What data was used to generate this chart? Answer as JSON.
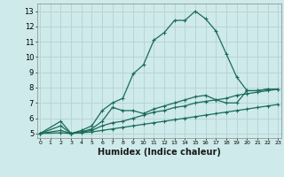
{
  "background_color": "#ceeaea",
  "grid_color": "#b8d4d4",
  "line_color": "#1a6b5a",
  "marker": "+",
  "markersize": 3,
  "linewidth": 0.9,
  "xlabel": "Humidex (Indice chaleur)",
  "xlabel_fontsize": 7,
  "ytick_fontsize": 6,
  "xtick_fontsize": 4.5,
  "yticks": [
    5,
    6,
    7,
    8,
    9,
    10,
    11,
    12,
    13
  ],
  "xticks": [
    0,
    1,
    2,
    3,
    4,
    5,
    6,
    7,
    8,
    9,
    10,
    11,
    12,
    13,
    14,
    15,
    16,
    17,
    18,
    19,
    20,
    21,
    22,
    23
  ],
  "xlim": [
    -0.3,
    23.3
  ],
  "ylim": [
    4.7,
    13.5
  ],
  "series": [
    {
      "x": [
        0,
        2,
        3,
        4,
        5,
        6,
        7,
        8,
        9,
        10,
        11,
        12,
        13,
        14,
        15,
        16,
        17,
        18,
        19,
        20,
        21,
        22
      ],
      "y": [
        5.0,
        5.8,
        5.0,
        5.2,
        5.5,
        6.5,
        7.0,
        7.3,
        8.9,
        9.5,
        11.1,
        11.6,
        12.4,
        12.4,
        13.0,
        12.5,
        11.7,
        10.2,
        8.7,
        7.8,
        7.8,
        7.9
      ]
    },
    {
      "x": [
        0,
        2,
        3,
        4,
        5,
        6,
        7,
        8,
        9,
        10,
        11,
        12,
        13,
        14,
        15,
        16,
        17,
        18,
        19,
        20,
        21,
        22,
        23
      ],
      "y": [
        5.0,
        5.5,
        5.0,
        5.1,
        5.3,
        5.8,
        6.7,
        6.5,
        6.5,
        6.3,
        6.6,
        6.8,
        7.0,
        7.2,
        7.4,
        7.5,
        7.2,
        7.0,
        7.0,
        7.8,
        7.8,
        7.9,
        7.9
      ]
    },
    {
      "x": [
        0,
        2,
        3,
        4,
        5,
        6,
        7,
        8,
        9,
        10,
        11,
        12,
        13,
        14,
        15,
        16,
        17,
        18,
        19,
        20,
        21,
        22,
        23
      ],
      "y": [
        5.0,
        5.2,
        5.0,
        5.1,
        5.2,
        5.5,
        5.7,
        5.8,
        6.0,
        6.2,
        6.4,
        6.5,
        6.7,
        6.8,
        7.0,
        7.1,
        7.2,
        7.3,
        7.5,
        7.6,
        7.7,
        7.8,
        7.9
      ]
    },
    {
      "x": [
        0,
        2,
        3,
        4,
        5,
        6,
        7,
        8,
        9,
        10,
        11,
        12,
        13,
        14,
        15,
        16,
        17,
        18,
        19,
        20,
        21,
        22,
        23
      ],
      "y": [
        5.0,
        5.05,
        5.0,
        5.05,
        5.1,
        5.2,
        5.3,
        5.4,
        5.5,
        5.6,
        5.7,
        5.8,
        5.9,
        6.0,
        6.1,
        6.2,
        6.3,
        6.4,
        6.5,
        6.6,
        6.7,
        6.8,
        6.9
      ]
    }
  ]
}
